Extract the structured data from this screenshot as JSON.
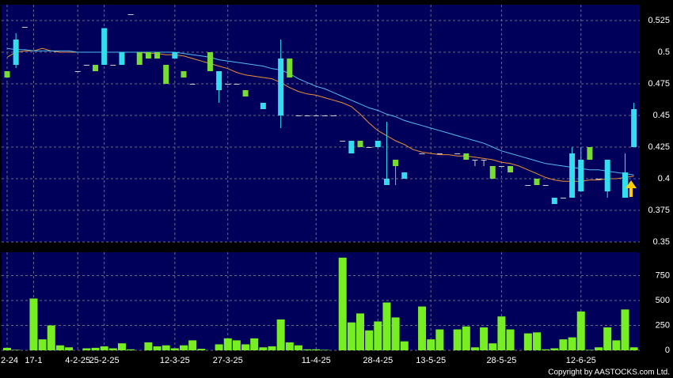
{
  "chart_data": [
    {
      "type": "candlestick",
      "categories": [
        "2-24",
        null,
        null,
        "17-1",
        null,
        null,
        null,
        null,
        "4-2-25",
        null,
        null,
        "25-2-25",
        null,
        null,
        null,
        null,
        null,
        null,
        null,
        "12-3-25",
        null,
        null,
        null,
        null,
        null,
        "27-3-25",
        null,
        null,
        null,
        null,
        null,
        null,
        null,
        null,
        null,
        "11-4-25",
        null,
        null,
        null,
        null,
        null,
        null,
        "28-4-25",
        null,
        null,
        null,
        null,
        null,
        "13-5-25",
        null,
        null,
        null,
        null,
        null,
        null,
        null,
        "28-5-25",
        null,
        null,
        null,
        null,
        null,
        null,
        null,
        null,
        "12-6-25",
        null,
        null,
        null,
        null,
        null,
        null
      ],
      "open": [
        0.485,
        0.49,
        0.52,
        null,
        null,
        null,
        null,
        null,
        0.485,
        0.49,
        0.49,
        0.49,
        0.49,
        0.49,
        0.53,
        0.5,
        0.5,
        0.5,
        0.49,
        0.495,
        0.485,
        0.475,
        null,
        0.5,
        0.47,
        0.475,
        0.475,
        0.47,
        null,
        0.455,
        null,
        0.45,
        0.495,
        0.45,
        0.45,
        0.45,
        0.45,
        0.45,
        0.43,
        0.42,
        0.43,
        0.425,
        0.425,
        0.395,
        0.415,
        0.4,
        null,
        0.42,
        null,
        0.42,
        null,
        0.42,
        0.42,
        0.415,
        0.415,
        0.41,
        0.41,
        0.41,
        null,
        0.395,
        0.4,
        0.395,
        0.38,
        0.385,
        0.385,
        0.39,
        0.425,
        0.4,
        0.39,
        null,
        0.385,
        0.425
      ],
      "high": [
        0.485,
        0.515,
        0.52,
        null,
        null,
        null,
        null,
        null,
        0.485,
        0.49,
        0.49,
        0.519,
        0.49,
        0.5,
        0.53,
        0.5,
        0.5,
        0.5,
        0.49,
        0.5,
        0.485,
        0.475,
        null,
        0.5,
        0.485,
        0.475,
        0.475,
        0.47,
        null,
        0.46,
        null,
        0.51,
        0.495,
        0.45,
        0.45,
        0.45,
        0.45,
        0.45,
        0.43,
        0.43,
        0.43,
        0.425,
        0.43,
        0.445,
        0.415,
        0.405,
        null,
        0.42,
        null,
        0.42,
        null,
        0.42,
        0.42,
        0.415,
        0.415,
        0.41,
        0.41,
        0.41,
        null,
        0.395,
        0.4,
        0.395,
        0.385,
        0.385,
        0.425,
        0.425,
        0.425,
        0.4,
        0.415,
        null,
        0.42,
        0.46
      ],
      "low": [
        0.48,
        0.4875,
        0.52,
        null,
        null,
        null,
        null,
        null,
        0.485,
        0.49,
        0.485,
        0.49,
        0.49,
        0.49,
        0.53,
        0.49,
        0.495,
        0.495,
        0.475,
        0.495,
        0.48,
        0.475,
        null,
        0.485,
        0.46,
        0.475,
        0.475,
        0.465,
        null,
        0.455,
        null,
        0.44,
        0.48,
        0.45,
        0.45,
        0.45,
        0.45,
        0.45,
        0.43,
        0.42,
        0.425,
        0.425,
        0.425,
        0.395,
        0.395,
        0.4,
        null,
        0.42,
        null,
        0.42,
        null,
        0.42,
        0.415,
        0.41,
        0.41,
        0.4,
        0.41,
        0.405,
        null,
        0.395,
        0.395,
        0.395,
        0.38,
        0.385,
        0.385,
        0.39,
        0.415,
        0.4,
        0.385,
        null,
        0.385,
        0.425
      ],
      "close": [
        0.48,
        0.51,
        0.52,
        null,
        null,
        null,
        null,
        null,
        0.485,
        0.49,
        0.485,
        0.519,
        0.49,
        0.5,
        0.53,
        0.49,
        0.495,
        0.495,
        0.475,
        0.5,
        0.48,
        0.475,
        null,
        0.485,
        0.485,
        0.475,
        0.475,
        0.465,
        null,
        0.46,
        null,
        0.495,
        0.48,
        0.45,
        0.45,
        0.45,
        0.45,
        0.45,
        0.43,
        0.43,
        0.425,
        0.425,
        0.43,
        0.4,
        0.41,
        0.405,
        null,
        0.42,
        null,
        0.42,
        null,
        0.42,
        0.415,
        0.415,
        0.415,
        0.4,
        0.41,
        0.405,
        null,
        0.395,
        0.395,
        0.395,
        0.385,
        0.385,
        0.42,
        0.415,
        0.415,
        0.4,
        0.415,
        null,
        0.405,
        0.455
      ],
      "up_color": "#33ddee",
      "down_color": "#77dd33",
      "flat_color": "#cccccc",
      "series": [
        {
          "color": "#e8903a",
          "values": [
            0.496,
            0.5,
            0.501,
            0.501,
            0.503,
            0.501,
            0.5,
            0.5,
            0.5,
            0.5,
            0.5,
            0.5,
            0.5,
            0.5,
            0.5,
            0.5,
            0.499,
            0.499,
            0.498,
            0.498,
            0.497,
            0.495,
            0.493,
            0.491,
            0.489,
            0.487,
            0.484,
            0.482,
            0.481,
            0.48,
            0.479,
            0.476,
            0.472,
            0.469,
            0.467,
            0.466,
            0.464,
            0.462,
            0.46,
            0.457,
            0.451,
            0.444,
            0.438,
            0.434,
            0.43,
            0.427,
            0.423,
            0.421,
            0.42,
            0.419,
            0.419,
            0.418,
            0.418,
            0.417,
            0.416,
            0.415,
            0.413,
            0.412,
            0.41,
            0.407,
            0.404,
            0.401,
            0.399,
            0.398,
            0.398,
            0.398,
            0.399,
            0.399,
            0.4,
            0.4,
            0.401,
            0.402
          ]
        },
        {
          "color": "#55bbee",
          "values": [
            0.503,
            0.502,
            0.502,
            0.501,
            0.501,
            0.501,
            0.501,
            0.501,
            0.5,
            0.5,
            0.5,
            0.5,
            0.5,
            0.5,
            0.5,
            0.5,
            0.5,
            0.5,
            0.5,
            0.5,
            0.499,
            0.498,
            0.497,
            0.496,
            0.494,
            0.493,
            0.492,
            0.491,
            0.49,
            0.489,
            0.487,
            0.486,
            0.483,
            0.479,
            0.476,
            0.473,
            0.471,
            0.468,
            0.465,
            0.462,
            0.459,
            0.456,
            0.454,
            0.451,
            0.449,
            0.446,
            0.444,
            0.442,
            0.44,
            0.438,
            0.436,
            0.434,
            0.432,
            0.43,
            0.428,
            0.425,
            0.422,
            0.42,
            0.418,
            0.416,
            0.414,
            0.412,
            0.411,
            0.41,
            0.409,
            0.408,
            0.407,
            0.407,
            0.406,
            0.405,
            0.404,
            0.403
          ]
        }
      ],
      "ylim": [
        0.35,
        0.5375
      ],
      "yticks": [
        0.35,
        0.375,
        0.4,
        0.425,
        0.45,
        0.475,
        0.5,
        0.525
      ],
      "grid": true
    },
    {
      "type": "bar",
      "color": "#77ee22",
      "values": [
        25,
        5,
        null,
        520,
        110,
        250,
        50,
        30,
        null,
        20,
        25,
        40,
        20,
        70,
        10,
        null,
        80,
        40,
        50,
        20,
        50,
        100,
        15,
        null,
        60,
        120,
        100,
        60,
        120,
        30,
        40,
        310,
        80,
        50,
        10,
        10,
        5,
        null,
        930,
        280,
        370,
        200,
        290,
        480,
        330,
        90,
        null,
        440,
        110,
        210,
        null,
        210,
        240,
        30,
        230,
        70,
        340,
        210,
        null,
        170,
        180,
        10,
        20,
        110,
        130,
        390,
        5,
        30,
        230,
        100,
        410,
        30
      ],
      "ylim": [
        0,
        984
      ],
      "yticks": [
        0,
        250,
        500,
        750
      ],
      "grid": true
    }
  ],
  "copyright": "Copyright by AASTOCKS.com Ltd."
}
